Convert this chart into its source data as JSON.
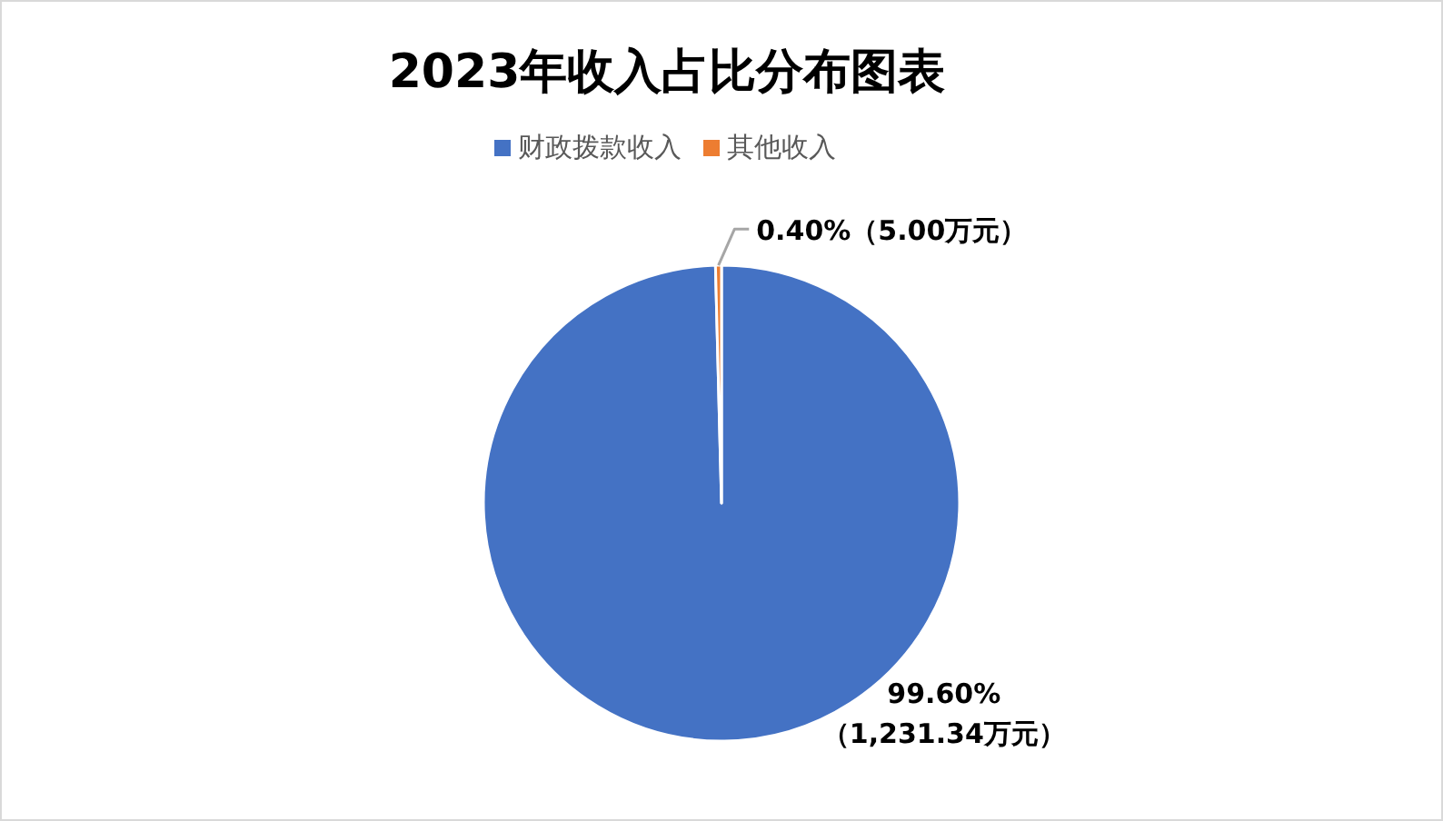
{
  "chart_data": {
    "type": "pie",
    "title": "2023年收入占比分布图表",
    "categories": [
      "财政拨款收入",
      "其他收入"
    ],
    "values": [
      1231.34,
      5.0
    ],
    "colors": [
      "#4472c4",
      "#ed7d31"
    ],
    "value_labels": [
      "99.60%（1,231.34万元）",
      "0.40%（5.00万元）"
    ],
    "legend": "top"
  }
}
